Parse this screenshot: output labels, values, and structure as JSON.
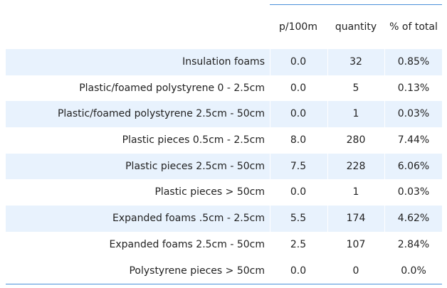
{
  "columns": [
    "p/100m",
    "quantity",
    "% of total"
  ],
  "rows": [
    {
      "label": "Insulation foams",
      "p100m": "0.0",
      "quantity": "32",
      "pct": "0.85%"
    },
    {
      "label": "Plastic/foamed polystyrene 0 - 2.5cm",
      "p100m": "0.0",
      "quantity": "5",
      "pct": "0.13%"
    },
    {
      "label": "Plastic/foamed polystyrene 2.5cm - 50cm",
      "p100m": "0.0",
      "quantity": "1",
      "pct": "0.03%"
    },
    {
      "label": "Plastic pieces 0.5cm - 2.5cm",
      "p100m": "8.0",
      "quantity": "280",
      "pct": "7.44%"
    },
    {
      "label": "Plastic pieces 2.5cm - 50cm",
      "p100m": "7.5",
      "quantity": "228",
      "pct": "6.06%"
    },
    {
      "label": "Plastic pieces > 50cm",
      "p100m": "0.0",
      "quantity": "1",
      "pct": "0.03%"
    },
    {
      "label": "Expanded foams .5cm - 2.5cm",
      "p100m": "5.5",
      "quantity": "174",
      "pct": "4.62%"
    },
    {
      "label": "Expanded foams 2.5cm - 50cm",
      "p100m": "2.5",
      "quantity": "107",
      "pct": "2.84%"
    },
    {
      "label": "Polystyrene pieces > 50cm",
      "p100m": "0.0",
      "quantity": "0",
      "pct": "0.0%"
    }
  ],
  "style": {
    "stripe_color": "#e8f2fd",
    "rule_color": "#4a90d9"
  }
}
